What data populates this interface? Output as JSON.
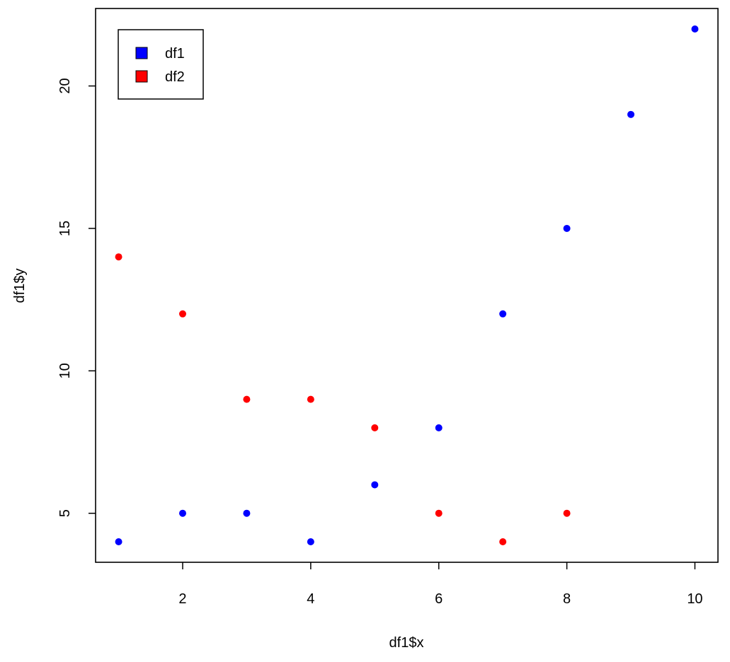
{
  "chart_data": {
    "type": "scatter",
    "title": "",
    "xlabel": "df1$x",
    "ylabel": "df1$y",
    "xlim": [
      0.64,
      10.36
    ],
    "ylim": [
      3.28,
      22.72
    ],
    "xticks": [
      2,
      4,
      6,
      8,
      10
    ],
    "yticks": [
      5,
      10,
      15,
      20
    ],
    "grid": false,
    "legend_position": "top-left",
    "series": [
      {
        "name": "df1",
        "color": "#0000ff",
        "points": [
          {
            "x": 1,
            "y": 4
          },
          {
            "x": 2,
            "y": 5
          },
          {
            "x": 3,
            "y": 5
          },
          {
            "x": 4,
            "y": 4
          },
          {
            "x": 5,
            "y": 6
          },
          {
            "x": 6,
            "y": 8
          },
          {
            "x": 7,
            "y": 12
          },
          {
            "x": 8,
            "y": 15
          },
          {
            "x": 9,
            "y": 19
          },
          {
            "x": 10,
            "y": 22
          }
        ]
      },
      {
        "name": "df2",
        "color": "#ff0000",
        "points": [
          {
            "x": 1,
            "y": 14
          },
          {
            "x": 2,
            "y": 12
          },
          {
            "x": 3,
            "y": 9
          },
          {
            "x": 4,
            "y": 9
          },
          {
            "x": 5,
            "y": 8
          },
          {
            "x": 6,
            "y": 5
          },
          {
            "x": 7,
            "y": 4
          },
          {
            "x": 8,
            "y": 5
          }
        ]
      }
    ]
  }
}
